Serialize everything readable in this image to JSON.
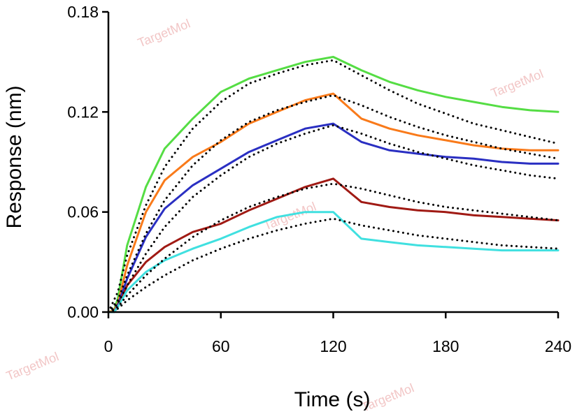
{
  "watermark": "TargetMol",
  "chart_data": {
    "type": "line",
    "xlabel": "Time (s)",
    "ylabel": "Response (nm)",
    "xlim": [
      0,
      240
    ],
    "ylim": [
      0,
      0.18
    ],
    "xticks": [
      "0",
      "60",
      "120",
      "180",
      "240"
    ],
    "yticks": [
      "0.00",
      "0.06",
      "0.12",
      "0.18"
    ],
    "grid": false,
    "legend": "none",
    "series": [
      {
        "color": "#55dd44",
        "x": [
          0,
          3,
          5,
          10,
          20,
          30,
          45,
          60,
          75,
          90,
          105,
          120,
          135,
          150,
          165,
          180,
          195,
          210,
          225,
          240
        ],
        "y": [
          0,
          0.001,
          0.008,
          0.04,
          0.075,
          0.098,
          0.116,
          0.132,
          0.14,
          0.145,
          0.15,
          0.153,
          0.145,
          0.138,
          0.133,
          0.129,
          0.126,
          0.123,
          0.121,
          0.12
        ]
      },
      {
        "color": "#f97a1a",
        "x": [
          0,
          3,
          5,
          10,
          20,
          30,
          45,
          60,
          75,
          90,
          105,
          120,
          135,
          150,
          165,
          180,
          195,
          210,
          225,
          240
        ],
        "y": [
          0,
          0.001,
          0.005,
          0.028,
          0.06,
          0.079,
          0.093,
          0.102,
          0.113,
          0.12,
          0.127,
          0.131,
          0.116,
          0.11,
          0.106,
          0.103,
          0.1,
          0.098,
          0.097,
          0.097
        ]
      },
      {
        "color": "#2a2fc2",
        "x": [
          0,
          3,
          5,
          10,
          20,
          30,
          45,
          60,
          75,
          90,
          105,
          120,
          135,
          150,
          165,
          180,
          195,
          210,
          225,
          240
        ],
        "y": [
          0,
          0,
          0.004,
          0.02,
          0.045,
          0.062,
          0.076,
          0.086,
          0.096,
          0.103,
          0.11,
          0.113,
          0.102,
          0.097,
          0.095,
          0.093,
          0.092,
          0.09,
          0.089,
          0.089
        ]
      },
      {
        "color": "#a01a14",
        "x": [
          0,
          3,
          5,
          10,
          20,
          30,
          45,
          60,
          75,
          90,
          105,
          120,
          135,
          150,
          165,
          180,
          195,
          210,
          225,
          240
        ],
        "y": [
          0,
          0,
          0.003,
          0.016,
          0.03,
          0.039,
          0.048,
          0.053,
          0.061,
          0.068,
          0.075,
          0.08,
          0.066,
          0.063,
          0.061,
          0.06,
          0.058,
          0.057,
          0.056,
          0.055
        ]
      },
      {
        "color": "#40e0e0",
        "x": [
          0,
          3,
          5,
          10,
          20,
          30,
          45,
          60,
          75,
          90,
          105,
          120,
          135,
          150,
          165,
          180,
          195,
          210,
          225,
          240
        ],
        "y": [
          0,
          0,
          0.003,
          0.013,
          0.024,
          0.031,
          0.038,
          0.044,
          0.051,
          0.057,
          0.06,
          0.06,
          0.044,
          0.042,
          0.04,
          0.039,
          0.038,
          0.037,
          0.037,
          0.037
        ]
      },
      {
        "color": "#000000",
        "x": [
          0,
          5,
          10,
          20,
          30,
          45,
          60,
          75,
          90,
          105,
          120,
          135,
          150,
          165,
          180,
          195,
          210,
          225,
          240
        ],
        "y": [
          0,
          0.012,
          0.034,
          0.064,
          0.087,
          0.11,
          0.126,
          0.137,
          0.143,
          0.148,
          0.151,
          0.142,
          0.133,
          0.125,
          0.119,
          0.113,
          0.109,
          0.105,
          0.101
        ]
      },
      {
        "color": "#000000",
        "x": [
          0,
          5,
          10,
          20,
          30,
          45,
          60,
          75,
          90,
          105,
          120,
          135,
          150,
          165,
          180,
          195,
          210,
          225,
          240
        ],
        "y": [
          0,
          0.007,
          0.022,
          0.047,
          0.067,
          0.088,
          0.103,
          0.114,
          0.121,
          0.126,
          0.13,
          0.124,
          0.117,
          0.111,
          0.106,
          0.102,
          0.098,
          0.095,
          0.092
        ]
      },
      {
        "color": "#000000",
        "x": [
          0,
          5,
          10,
          20,
          30,
          45,
          60,
          75,
          90,
          105,
          120,
          135,
          150,
          165,
          180,
          195,
          210,
          225,
          240
        ],
        "y": [
          0,
          0.005,
          0.016,
          0.035,
          0.051,
          0.069,
          0.082,
          0.093,
          0.101,
          0.107,
          0.112,
          0.107,
          0.101,
          0.096,
          0.092,
          0.088,
          0.085,
          0.082,
          0.08
        ]
      },
      {
        "color": "#000000",
        "x": [
          0,
          5,
          10,
          20,
          30,
          45,
          60,
          75,
          90,
          105,
          120,
          135,
          150,
          165,
          180,
          195,
          210,
          225,
          240
        ],
        "y": [
          0,
          0.003,
          0.01,
          0.022,
          0.032,
          0.045,
          0.055,
          0.063,
          0.069,
          0.074,
          0.077,
          0.074,
          0.07,
          0.066,
          0.063,
          0.061,
          0.059,
          0.057,
          0.055
        ]
      },
      {
        "color": "#000000",
        "x": [
          0,
          5,
          10,
          20,
          30,
          45,
          60,
          75,
          90,
          105,
          120,
          135,
          150,
          165,
          180,
          195,
          210,
          225,
          240
        ],
        "y": [
          0,
          0.002,
          0.007,
          0.015,
          0.022,
          0.031,
          0.038,
          0.044,
          0.049,
          0.053,
          0.056,
          0.052,
          0.049,
          0.046,
          0.044,
          0.042,
          0.04,
          0.039,
          0.038
        ]
      }
    ]
  }
}
